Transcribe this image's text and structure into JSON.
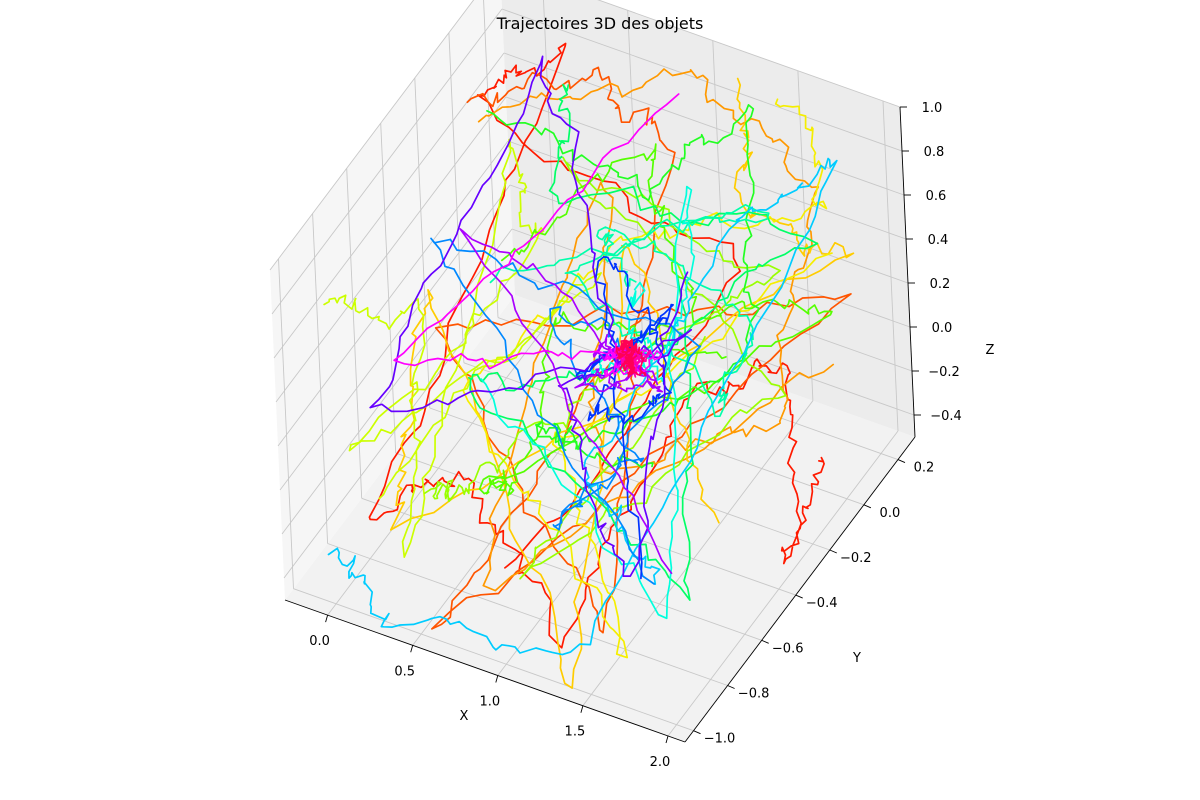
{
  "chart_data": {
    "type": "line",
    "projection": "3d",
    "title": "Trajectoires 3D des objets",
    "xlabel": "X",
    "ylabel": "Y",
    "zlabel": "Z",
    "xlim": [
      -0.25,
      2.1
    ],
    "ylim": [
      -1.05,
      0.3
    ],
    "zlim": [
      -0.5,
      1.0
    ],
    "xticks": [
      "0.0",
      "0.5",
      "1.0",
      "1.5",
      "2.0"
    ],
    "yticks": [
      "−1.0",
      "−0.8",
      "−0.6",
      "−0.4",
      "−0.2",
      "0.0",
      "0.2"
    ],
    "zticks": [
      "−0.4",
      "−0.2",
      "0.0",
      "0.2",
      "0.4",
      "0.6",
      "0.8",
      "1.0"
    ],
    "grid": true,
    "legend": "none",
    "series": [
      {
        "color": "#ff1a00",
        "points": [
          [
            1.9,
            -0.05,
            -0.3
          ],
          [
            2.0,
            -0.35,
            -0.4
          ],
          [
            1.6,
            0.1,
            -0.1
          ],
          [
            1.75,
            -0.6,
            0.55
          ],
          [
            1.2,
            -0.9,
            -0.42
          ],
          [
            0.7,
            -0.9,
            0.25
          ],
          [
            0.0,
            -0.8,
            -0.35
          ],
          [
            0.2,
            0.2,
            0.85
          ],
          [
            0.1,
            -0.2,
            0.95
          ],
          [
            1.4,
            0.05,
            0.3
          ],
          [
            0.9,
            -0.85,
            -0.2
          ]
        ]
      },
      {
        "color": "#ff5500",
        "points": [
          [
            0.0,
            -0.1,
            0.9
          ],
          [
            0.4,
            0.25,
            0.7
          ],
          [
            1.1,
            -0.1,
            0.95
          ],
          [
            1.5,
            -0.9,
            -0.3
          ],
          [
            0.35,
            -0.7,
            0.5
          ],
          [
            1.9,
            0.2,
            0.2
          ],
          [
            0.6,
            -1.0,
            -0.45
          ],
          [
            1.3,
            -0.4,
            0.6
          ]
        ]
      },
      {
        "color": "#ff9900",
        "points": [
          [
            0.2,
            -0.25,
            1.0
          ],
          [
            0.9,
            0.2,
            0.9
          ],
          [
            1.8,
            0.1,
            0.75
          ],
          [
            1.95,
            -0.3,
            0.2
          ],
          [
            1.5,
            -0.9,
            0.4
          ],
          [
            0.5,
            0.1,
            0.5
          ],
          [
            0.8,
            -0.95,
            -0.3
          ],
          [
            1.7,
            0.25,
            -0.2
          ]
        ]
      },
      {
        "color": "#ffcc00",
        "points": [
          [
            1.2,
            0.25,
            0.95
          ],
          [
            1.7,
            -0.2,
            0.9
          ],
          [
            2.0,
            0.1,
            0.55
          ],
          [
            0.3,
            -0.95,
            -0.2
          ],
          [
            0.1,
            -0.5,
            0.4
          ],
          [
            1.4,
            -1.0,
            -0.45
          ],
          [
            0.7,
            0.05,
            0.2
          ],
          [
            1.95,
            -0.7,
            0.05
          ]
        ]
      },
      {
        "color": "#f5ee00",
        "points": [
          [
            1.5,
            0.2,
            1.0
          ],
          [
            2.05,
            -0.1,
            0.95
          ],
          [
            1.0,
            -0.3,
            0.7
          ],
          [
            0.2,
            -0.4,
            -0.1
          ],
          [
            1.6,
            -0.95,
            -0.35
          ],
          [
            0.9,
            -0.6,
            0.1
          ],
          [
            1.8,
            0.1,
            0.4
          ]
        ]
      },
      {
        "color": "#ccff00",
        "points": [
          [
            -0.2,
            -0.8,
            0.6
          ],
          [
            -0.1,
            -0.4,
            0.2
          ],
          [
            0.3,
            -0.85,
            -0.3
          ],
          [
            0.0,
            0.1,
            0.4
          ],
          [
            0.6,
            -0.3,
            0.6
          ],
          [
            0.1,
            -0.95,
            0.1
          ],
          [
            0.4,
            0.2,
            -0.1
          ],
          [
            -0.15,
            -0.6,
            -0.4
          ]
        ]
      },
      {
        "color": "#99ff00",
        "points": [
          [
            0.1,
            -0.6,
            -0.4
          ],
          [
            0.6,
            -0.8,
            0.0
          ],
          [
            1.1,
            -0.5,
            0.3
          ],
          [
            1.9,
            -0.2,
            0.7
          ],
          [
            0.4,
            0.0,
            0.6
          ],
          [
            1.5,
            0.2,
            -0.3
          ],
          [
            0.8,
            -0.7,
            -0.45
          ],
          [
            1.3,
            -0.1,
            0.1
          ]
        ]
      },
      {
        "color": "#55ff00",
        "points": [
          [
            0.3,
            -0.3,
            0.4
          ],
          [
            0.8,
            0.1,
            0.7
          ],
          [
            1.5,
            -0.3,
            0.5
          ],
          [
            1.7,
            0.25,
            0.0
          ],
          [
            0.5,
            -0.6,
            -0.2
          ],
          [
            1.0,
            -0.9,
            0.2
          ],
          [
            0.2,
            0.15,
            -0.3
          ],
          [
            1.85,
            -0.5,
            0.6
          ]
        ]
      },
      {
        "color": "#22ff22",
        "points": [
          [
            0.0,
            0.0,
            0.7
          ],
          [
            0.6,
            0.25,
            0.3
          ],
          [
            1.3,
            0.2,
            0.85
          ],
          [
            1.9,
            -0.4,
            0.5
          ],
          [
            0.9,
            -0.5,
            -0.1
          ],
          [
            0.4,
            -0.2,
            -0.4
          ],
          [
            1.6,
            -0.7,
            0.2
          ]
        ]
      },
      {
        "color": "#00ff66",
        "points": [
          [
            0.45,
            0.0,
            1.0
          ],
          [
            0.7,
            -0.3,
            0.85
          ],
          [
            1.8,
            0.05,
            0.6
          ],
          [
            1.2,
            -0.6,
            0.4
          ],
          [
            0.3,
            -0.5,
            0.1
          ],
          [
            1.95,
            -0.85,
            -0.1
          ],
          [
            0.9,
            0.2,
            0.0
          ]
        ]
      },
      {
        "color": "#00ffaa",
        "points": [
          [
            1.0,
            -0.2,
            0.4
          ],
          [
            0.5,
            0.1,
            0.25
          ],
          [
            1.6,
            -0.1,
            0.3
          ],
          [
            1.9,
            -0.6,
            0.45
          ],
          [
            0.8,
            -0.4,
            0.6
          ],
          [
            1.4,
            0.2,
            0.45
          ],
          [
            0.2,
            -0.3,
            0.3
          ]
        ]
      },
      {
        "color": "#00ffdd",
        "points": [
          [
            0.9,
            -0.1,
            0.3
          ],
          [
            1.2,
            -0.3,
            0.2
          ],
          [
            0.7,
            -0.2,
            0.05
          ],
          [
            1.5,
            -0.5,
            0.4
          ],
          [
            1.0,
            0.15,
            0.5
          ],
          [
            1.85,
            -0.9,
            -0.2
          ],
          [
            0.6,
            -0.7,
            0.35
          ]
        ]
      },
      {
        "color": "#00ccff",
        "points": [
          [
            -0.15,
            -0.9,
            -0.4
          ],
          [
            0.3,
            -1.0,
            -0.45
          ],
          [
            1.4,
            -0.85,
            -0.45
          ],
          [
            1.95,
            0.1,
            0.95
          ],
          [
            1.7,
            -0.3,
            0.85
          ],
          [
            1.0,
            -0.5,
            -0.1
          ],
          [
            1.9,
            -0.95,
            0.1
          ]
        ]
      },
      {
        "color": "#0088ff",
        "points": [
          [
            1.1,
            -0.25,
            0.1
          ],
          [
            0.6,
            -0.3,
            0.3
          ],
          [
            1.3,
            -0.5,
            0.0
          ],
          [
            0.9,
            -0.6,
            -0.3
          ],
          [
            1.5,
            -0.3,
            0.35
          ],
          [
            0.2,
            -0.6,
            0.8
          ],
          [
            1.7,
            -0.8,
            -0.2
          ]
        ]
      },
      {
        "color": "#0033ff",
        "points": [
          [
            1.0,
            -0.2,
            0.15
          ],
          [
            0.8,
            -0.35,
            0.05
          ],
          [
            1.2,
            -0.15,
            0.3
          ],
          [
            0.95,
            -0.45,
            0.0
          ],
          [
            1.3,
            -0.3,
            0.1
          ],
          [
            0.7,
            -0.1,
            0.35
          ],
          [
            1.45,
            -0.6,
            -0.3
          ]
        ]
      },
      {
        "color": "#6600ff",
        "points": [
          [
            0.95,
            -0.25,
            0.1
          ],
          [
            0.2,
            0.1,
            0.95
          ],
          [
            0.1,
            -0.9,
            0.25
          ],
          [
            1.35,
            -0.2,
            0.25
          ],
          [
            0.75,
            -0.4,
            0.1
          ],
          [
            1.5,
            -0.8,
            -0.2
          ],
          [
            1.15,
            0.0,
            0.35
          ]
        ]
      },
      {
        "color": "#aa00ff",
        "points": [
          [
            1.0,
            -0.22,
            0.12
          ],
          [
            0.85,
            -0.3,
            0.2
          ],
          [
            1.15,
            -0.2,
            0.0
          ],
          [
            0.9,
            -0.4,
            0.15
          ],
          [
            1.25,
            -0.35,
            0.2
          ],
          [
            0.1,
            -0.3,
            0.55
          ],
          [
            1.6,
            -0.6,
            -0.35
          ]
        ]
      },
      {
        "color": "#ff00ff",
        "points": [
          [
            1.0,
            -0.22,
            0.1
          ],
          [
            0.92,
            -0.28,
            0.15
          ],
          [
            1.08,
            -0.18,
            0.05
          ],
          [
            0.96,
            -0.32,
            0.12
          ],
          [
            1.12,
            -0.26,
            0.18
          ],
          [
            -0.1,
            -0.5,
            0.1
          ],
          [
            0.9,
            0.2,
            0.8
          ]
        ]
      },
      {
        "color": "#ff00aa",
        "points": [
          [
            1.0,
            -0.22,
            0.1
          ],
          [
            0.95,
            -0.25,
            0.12
          ],
          [
            1.05,
            -0.2,
            0.08
          ],
          [
            0.98,
            -0.27,
            0.15
          ],
          [
            1.03,
            -0.24,
            0.06
          ],
          [
            0.9,
            -0.2,
            0.1
          ],
          [
            1.1,
            -0.28,
            0.13
          ]
        ]
      },
      {
        "color": "#ff0055",
        "points": [
          [
            1.0,
            -0.22,
            0.1
          ],
          [
            0.97,
            -0.24,
            0.13
          ],
          [
            1.03,
            -0.21,
            0.07
          ],
          [
            0.99,
            -0.26,
            0.12
          ],
          [
            1.02,
            -0.23,
            0.09
          ],
          [
            0.94,
            -0.22,
            0.1
          ],
          [
            1.06,
            -0.25,
            0.11
          ]
        ]
      }
    ]
  }
}
